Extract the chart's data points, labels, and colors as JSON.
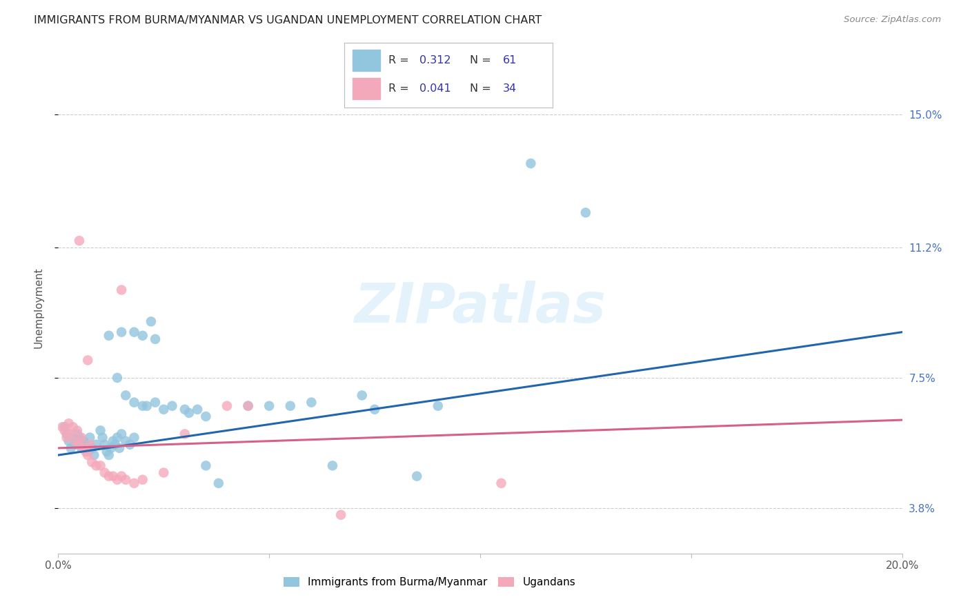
{
  "title": "IMMIGRANTS FROM BURMA/MYANMAR VS UGANDAN UNEMPLOYMENT CORRELATION CHART",
  "source": "Source: ZipAtlas.com",
  "ylabel": "Unemployment",
  "yticks": [
    3.8,
    7.5,
    11.2,
    15.0
  ],
  "ytick_labels": [
    "3.8%",
    "7.5%",
    "11.2%",
    "15.0%"
  ],
  "xticks": [
    0,
    5,
    10,
    15,
    20
  ],
  "xtick_labels": [
    "0.0%",
    "",
    "",
    "",
    "20.0%"
  ],
  "xmin": 0.0,
  "xmax": 20.0,
  "ymin": 2.5,
  "ymax": 16.5,
  "watermark": "ZIPatlas",
  "legend_line1": [
    "R = ",
    "0.312",
    "  N = ",
    "61"
  ],
  "legend_line2": [
    "R = ",
    "0.041",
    "  N = ",
    "34"
  ],
  "legend_text_color": "#3333aa",
  "blue_color": "#92c5de",
  "pink_color": "#f4a9bb",
  "blue_line_color": "#2166ac",
  "pink_line_color": "#d6608a",
  "blue_scatter": [
    [
      0.15,
      6.1
    ],
    [
      0.2,
      5.9
    ],
    [
      0.25,
      5.7
    ],
    [
      0.3,
      5.5
    ],
    [
      0.35,
      5.8
    ],
    [
      0.4,
      5.6
    ],
    [
      0.45,
      5.9
    ],
    [
      0.5,
      5.8
    ],
    [
      0.55,
      5.5
    ],
    [
      0.6,
      5.7
    ],
    [
      0.65,
      5.6
    ],
    [
      0.7,
      5.4
    ],
    [
      0.75,
      5.8
    ],
    [
      0.8,
      5.5
    ],
    [
      0.85,
      5.3
    ],
    [
      0.9,
      5.6
    ],
    [
      1.0,
      6.0
    ],
    [
      1.05,
      5.8
    ],
    [
      1.1,
      5.6
    ],
    [
      1.15,
      5.4
    ],
    [
      1.2,
      5.3
    ],
    [
      1.25,
      5.5
    ],
    [
      1.3,
      5.7
    ],
    [
      1.35,
      5.6
    ],
    [
      1.4,
      5.8
    ],
    [
      1.45,
      5.5
    ],
    [
      1.5,
      5.9
    ],
    [
      1.6,
      5.7
    ],
    [
      1.7,
      5.6
    ],
    [
      1.8,
      5.8
    ],
    [
      1.2,
      8.7
    ],
    [
      1.5,
      8.8
    ],
    [
      1.8,
      8.8
    ],
    [
      2.0,
      8.7
    ],
    [
      2.2,
      9.1
    ],
    [
      2.3,
      8.6
    ],
    [
      1.4,
      7.5
    ],
    [
      1.6,
      7.0
    ],
    [
      1.8,
      6.8
    ],
    [
      2.0,
      6.7
    ],
    [
      2.1,
      6.7
    ],
    [
      2.3,
      6.8
    ],
    [
      2.5,
      6.6
    ],
    [
      2.7,
      6.7
    ],
    [
      3.0,
      6.6
    ],
    [
      3.1,
      6.5
    ],
    [
      3.3,
      6.6
    ],
    [
      3.5,
      6.4
    ],
    [
      3.5,
      5.0
    ],
    [
      3.8,
      4.5
    ],
    [
      4.5,
      6.7
    ],
    [
      5.0,
      6.7
    ],
    [
      5.5,
      6.7
    ],
    [
      6.0,
      6.8
    ],
    [
      6.5,
      5.0
    ],
    [
      7.2,
      7.0
    ],
    [
      7.5,
      6.6
    ],
    [
      8.5,
      4.7
    ],
    [
      9.0,
      6.7
    ],
    [
      11.2,
      13.6
    ],
    [
      12.5,
      12.2
    ]
  ],
  "pink_scatter": [
    [
      0.1,
      6.1
    ],
    [
      0.15,
      6.0
    ],
    [
      0.2,
      5.8
    ],
    [
      0.25,
      6.2
    ],
    [
      0.3,
      5.9
    ],
    [
      0.35,
      6.1
    ],
    [
      0.4,
      5.7
    ],
    [
      0.45,
      6.0
    ],
    [
      0.5,
      5.6
    ],
    [
      0.55,
      5.8
    ],
    [
      0.6,
      5.5
    ],
    [
      0.65,
      5.4
    ],
    [
      0.7,
      5.3
    ],
    [
      0.75,
      5.6
    ],
    [
      0.8,
      5.1
    ],
    [
      0.9,
      5.0
    ],
    [
      1.0,
      5.0
    ],
    [
      1.1,
      4.8
    ],
    [
      1.2,
      4.7
    ],
    [
      1.3,
      4.7
    ],
    [
      1.4,
      4.6
    ],
    [
      1.5,
      4.7
    ],
    [
      1.6,
      4.6
    ],
    [
      1.8,
      4.5
    ],
    [
      2.0,
      4.6
    ],
    [
      2.5,
      4.8
    ],
    [
      3.0,
      5.9
    ],
    [
      0.5,
      11.4
    ],
    [
      0.7,
      8.0
    ],
    [
      1.5,
      10.0
    ],
    [
      4.0,
      6.7
    ],
    [
      4.5,
      6.7
    ],
    [
      6.7,
      3.6
    ],
    [
      10.5,
      4.5
    ]
  ],
  "blue_line_x": [
    0.0,
    20.0
  ],
  "blue_line_y": [
    5.3,
    8.8
  ],
  "pink_line_x": [
    0.0,
    20.0
  ],
  "pink_line_y": [
    5.5,
    6.3
  ]
}
